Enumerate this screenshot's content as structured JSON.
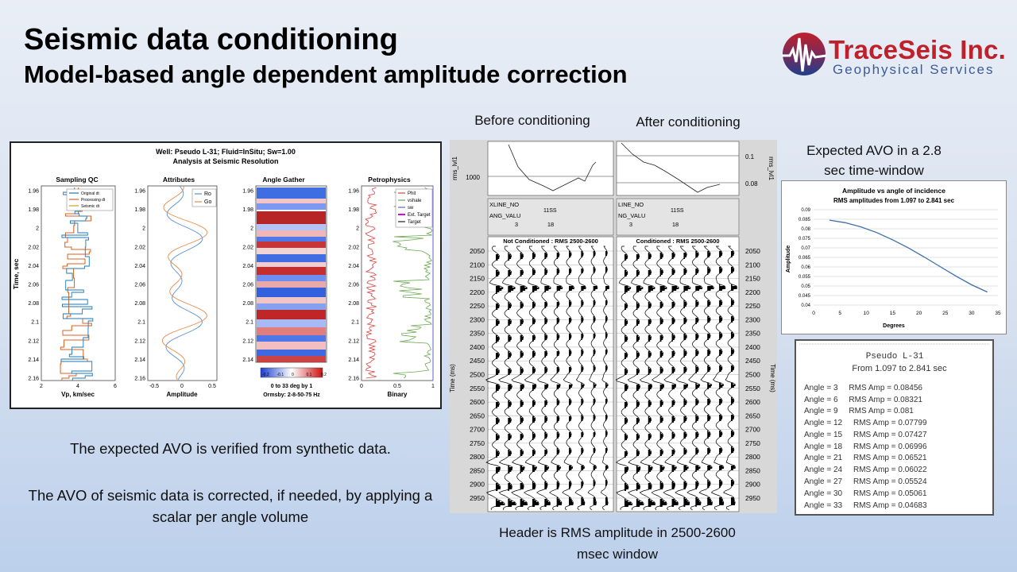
{
  "title": {
    "line1": "Seismic data conditioning",
    "line2": "Model-based angle dependent amplitude correction"
  },
  "logo": {
    "name": "TraceSeis Inc.",
    "subtitle": "Geophysical Services",
    "primary_color": "#c0202a",
    "secondary_color": "#3b5a9a"
  },
  "synthetic_figure": {
    "header1": "Well: Pseudo L-31; Fluid=InSitu; Sw=1.00",
    "header2": "Analysis at Seismic Resolution",
    "y_axis_label": "Time, sec",
    "time_ticks": [
      "1.96",
      "1.98",
      "2",
      "2.02",
      "2.04",
      "2.06",
      "2.08",
      "2.1",
      "2.12",
      "2.14",
      "2.16"
    ],
    "tracks": [
      {
        "title": "Sampling QC",
        "xlabel": "Vp, km/sec",
        "xticks": [
          "2",
          "4",
          "6"
        ],
        "legend": [
          "Original dt",
          "Processing dt",
          "Seismic dt"
        ]
      },
      {
        "title": "Attributes",
        "xlabel": "Amplitude",
        "xticks": [
          "-0.5",
          "0",
          "0.5"
        ],
        "legend": [
          "Ro",
          "Go"
        ]
      },
      {
        "title": "Angle Gather",
        "xlabel": "0 to 33 deg by 1",
        "xlabel2": "Ormsby: 2-8-50-75 Hz",
        "colorbar": [
          "-0.2",
          "-0.1",
          "0",
          "0.1",
          "0.2"
        ]
      },
      {
        "title": "Petrophysics",
        "xlabel": "Binary",
        "xticks": [
          "0",
          "0.5",
          "1"
        ],
        "legend": [
          "Phit",
          "vshale",
          "sw",
          "Ext. Target",
          "Target"
        ]
      }
    ]
  },
  "captions": {
    "before": "Before conditioning",
    "after": "After conditioning",
    "expected_avo": "Expected AVO in a 2.8 sec time-window",
    "header_note": "Header is RMS amplitude in 2500-2600 msec window"
  },
  "seismic_display": {
    "rms_axis_label": "rms_lvl1",
    "left_rms_tick": "1000",
    "right_rms_ticks": [
      "0.1",
      "0.08"
    ],
    "header_left": {
      "line_label": "XLINE_NO",
      "ang_label": "ANG_VALU",
      "line_value": "11SS",
      "angles": [
        "3",
        "18"
      ]
    },
    "header_right": {
      "line_label": "LINE_NO",
      "ang_label": "NG_VALU",
      "line_value": "11SS",
      "angles": [
        "3",
        "18"
      ]
    },
    "panel_left_title": "Not Conditioned : RMS 2500-2600",
    "panel_right_title": "Conditioned : RMS 2500-2600",
    "time_label": "Time (ms)",
    "time_ticks": [
      "2050",
      "2100",
      "2150",
      "2200",
      "2250",
      "2300",
      "2350",
      "2400",
      "2450",
      "2500",
      "2550",
      "2600",
      "2650",
      "2700",
      "2750",
      "2800",
      "2850",
      "2900",
      "2950"
    ]
  },
  "body_text": {
    "p1": "The expected AVO is verified from synthetic data.",
    "p2": "The AVO of seismic data is corrected, if needed, by applying a scalar per angle volume"
  },
  "chart_data": {
    "type": "line",
    "title": "Amplitude vs angle of incidence",
    "subtitle": "RMS amplitudes from 1.097 to 2.841 sec",
    "xlabel": "Degrees",
    "ylabel": "Amplitude",
    "xlim": [
      0,
      35
    ],
    "ylim": [
      0.04,
      0.09
    ],
    "xticks": [
      "0",
      "5",
      "10",
      "15",
      "20",
      "25",
      "30",
      "35"
    ],
    "yticks": [
      "0.04",
      "0.045",
      "0.05",
      "0.055",
      "0.06",
      "0.065",
      "0.07",
      "0.075",
      "0.08",
      "0.085",
      "0.09"
    ],
    "x": [
      3,
      6,
      9,
      12,
      15,
      18,
      21,
      24,
      27,
      30,
      33
    ],
    "y": [
      0.08456,
      0.08321,
      0.081,
      0.07799,
      0.07427,
      0.06996,
      0.06521,
      0.06022,
      0.05524,
      0.05061,
      0.04683
    ],
    "line_color": "#3c6fa8",
    "grid": true
  },
  "rms_table": {
    "title": "Pseudo L-31",
    "subtitle": "From 1.097 to 2.841 sec",
    "rows": [
      "Angle = 3     RMS Amp = 0.08456",
      "Angle = 6     RMS Amp = 0.08321",
      "Angle = 9     RMS Amp = 0.081",
      "Angle = 12     RMS Amp = 0.07799",
      "Angle = 15     RMS Amp = 0.07427",
      "Angle = 18     RMS Amp = 0.06996",
      "Angle = 21     RMS Amp = 0.06521",
      "Angle = 24     RMS Amp = 0.06022",
      "Angle = 27     RMS Amp = 0.05524",
      "Angle = 30     RMS Amp = 0.05061",
      "Angle = 33     RMS Amp = 0.04683"
    ]
  }
}
